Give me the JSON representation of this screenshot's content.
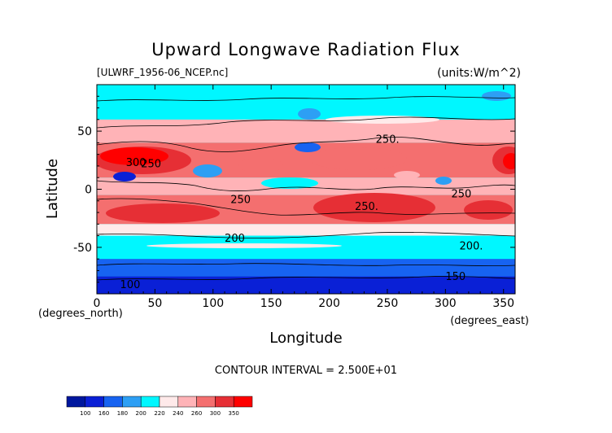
{
  "chart_data": {
    "type": "heatmap",
    "title": "Upward Longwave Radiation Flux",
    "file_label": "[ULWRF_1956-06_NCEP.nc]",
    "units_label": "(units:W/m^2)",
    "xlabel": "Longitude",
    "ylabel": "Latitude",
    "x_unit_label": "(degrees_east)",
    "y_unit_label": "(degrees_north)",
    "xlim": [
      0,
      360
    ],
    "ylim": [
      -90,
      90
    ],
    "x_ticks": [
      0,
      50,
      100,
      150,
      200,
      250,
      300,
      350
    ],
    "y_ticks": [
      -50,
      0,
      50
    ],
    "contour_interval_label": "CONTOUR INTERVAL = 2.500E+01",
    "contour_labels": [
      {
        "text": "300",
        "lon": 25,
        "lat": 20
      },
      {
        "text": "250",
        "lon": 38,
        "lat": 19
      },
      {
        "text": "250.",
        "lon": 240,
        "lat": 40
      },
      {
        "text": "250",
        "lon": 115,
        "lat": -12
      },
      {
        "text": "250.",
        "lon": 222,
        "lat": -18
      },
      {
        "text": "250",
        "lon": 305,
        "lat": -7
      },
      {
        "text": "200",
        "lon": 110,
        "lat": -45
      },
      {
        "text": "200.",
        "lon": 312,
        "lat": -52
      },
      {
        "text": "150",
        "lon": 300,
        "lat": -78
      },
      {
        "text": "100",
        "lon": 20,
        "lat": -85
      }
    ],
    "bands": [
      {
        "lat": [
          60,
          90
        ],
        "value": 215
      },
      {
        "lat": [
          40,
          60
        ],
        "value": 240
      },
      {
        "lat": [
          10,
          40
        ],
        "value": 275
      },
      {
        "lat": [
          -5,
          10
        ],
        "value": 245
      },
      {
        "lat": [
          -30,
          -5
        ],
        "value": 270
      },
      {
        "lat": [
          -40,
          -30
        ],
        "value": 235
      },
      {
        "lat": [
          -60,
          -40
        ],
        "value": 210
      },
      {
        "lat": [
          -75,
          -60
        ],
        "value": 170
      },
      {
        "lat": [
          -90,
          -75
        ],
        "value": 140
      }
    ],
    "colorbar": {
      "levels": [
        "100",
        "160",
        "180",
        "200",
        "220",
        "240",
        "260",
        "300",
        "350"
      ],
      "colors": [
        "#00179e",
        "#0a20d6",
        "#1763f1",
        "#2d9ff4",
        "#00f7ff",
        "#ffeaea",
        "#ffb3b7",
        "#f46f6f",
        "#e62f35",
        "#ff0000"
      ]
    }
  }
}
